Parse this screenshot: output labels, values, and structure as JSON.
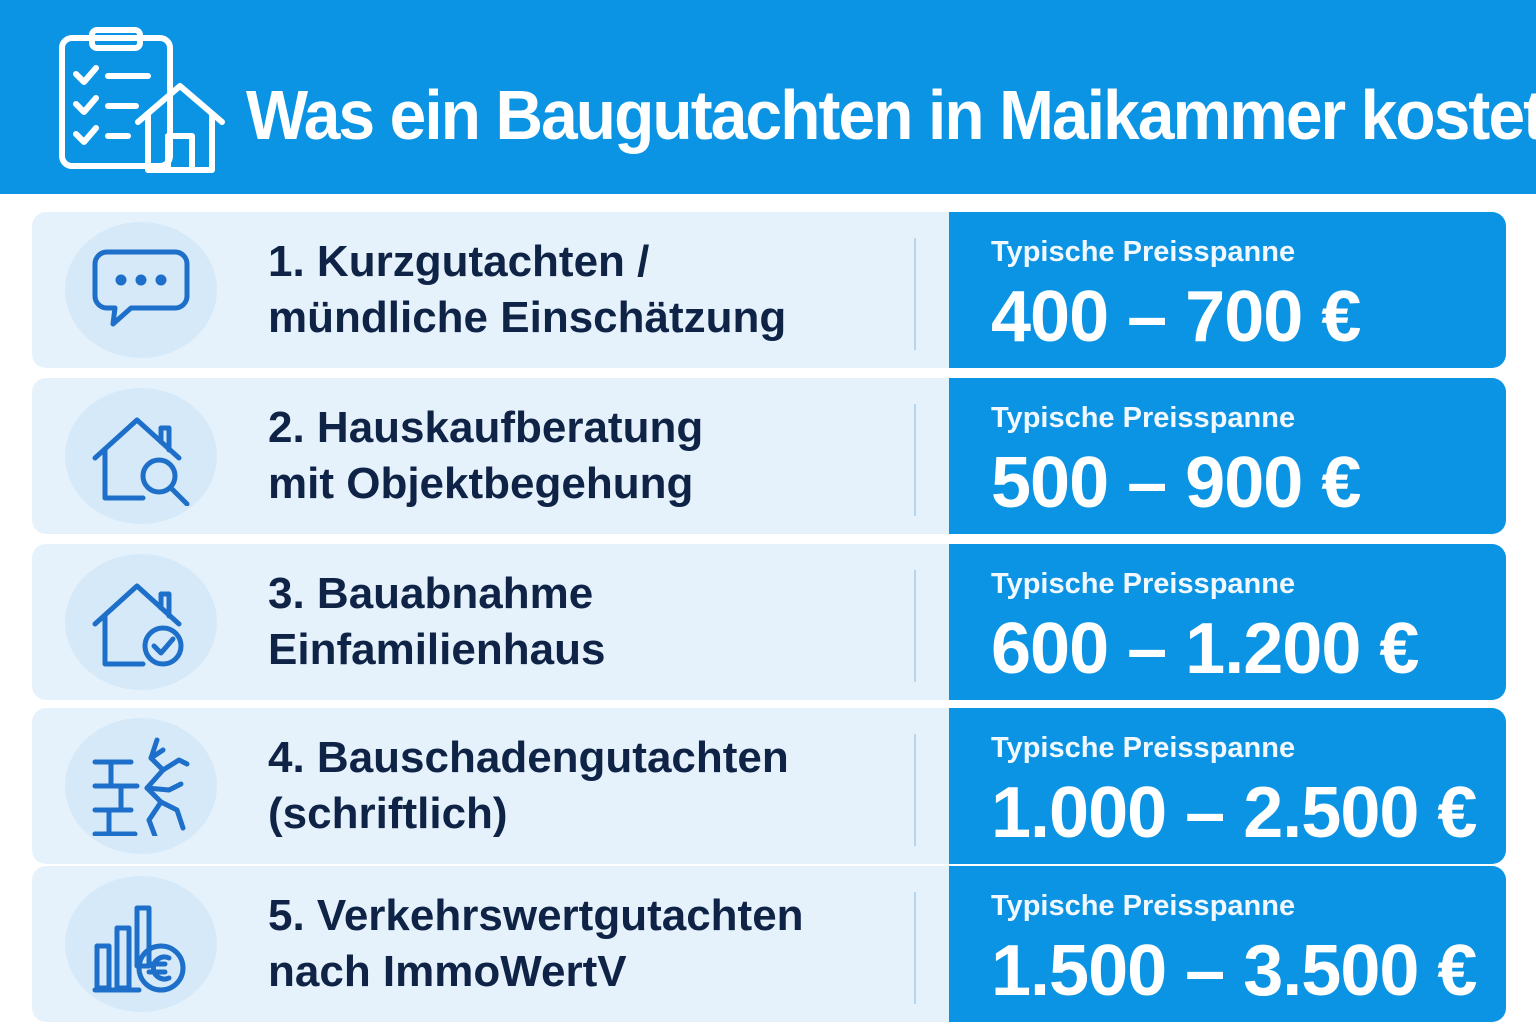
{
  "header": {
    "title": "Was ein Baugutachten in Maikammer kostet",
    "icon": "clipboard-house-icon"
  },
  "colors": {
    "primary": "#0c94e4",
    "row_background": "#e6f2fb",
    "text_dark": "#0f2346",
    "icon_stroke": "#1d6fc9"
  },
  "rows": [
    {
      "line1": "1. Kurzgutachten /",
      "line2": "mündliche Einschätzung",
      "caption": "Typische Preisspanne",
      "price": "400 – 700 €",
      "icon": "speech-bubble-icon"
    },
    {
      "line1": "2. Hauskaufberatung",
      "line2": "mit Objektbegehung",
      "caption": "Typische Preisspanne",
      "price": "500 – 900 €",
      "icon": "house-search-icon"
    },
    {
      "line1": "3. Bauabnahme",
      "line2": "Einfamilienhaus",
      "caption": "Typische Preisspanne",
      "price": "600 – 1.200 €",
      "icon": "house-check-icon"
    },
    {
      "line1": "4. Bauschadengutachten",
      "line2": "(schriftlich)",
      "caption": "Typische Preisspanne",
      "price": "1.000 – 2.500 €",
      "icon": "cracked-wall-icon"
    },
    {
      "line1": "5. Verkehrswertgutachten",
      "line2": "nach ImmoWertV",
      "caption": "Typische Preisspanne",
      "price": "1.500 – 3.500 €",
      "icon": "chart-euro-icon"
    }
  ]
}
